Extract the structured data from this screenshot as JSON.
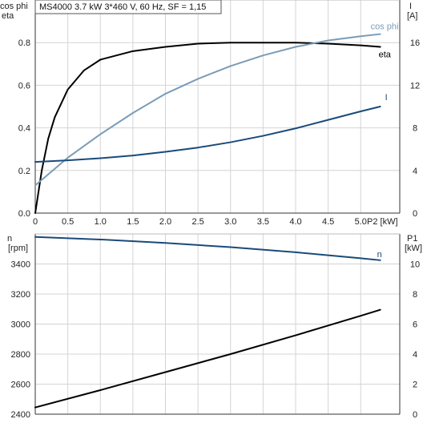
{
  "header": {
    "text": "MS4000   3.7 kW   3*460 V, 60 Hz, SF = 1,15"
  },
  "chart_data": [
    {
      "type": "line",
      "left_axis_title": [
        "cos phi",
        "eta"
      ],
      "right_axis_title": [
        "I",
        "[A]"
      ],
      "xlabel": "P2 [kW]",
      "xlim": [
        0,
        5.6
      ],
      "ylim_left": [
        0,
        1.0
      ],
      "ylim_right": [
        0,
        20
      ],
      "xticks": [
        0,
        0.5,
        1.0,
        1.5,
        2.0,
        2.5,
        3.0,
        3.5,
        4.0,
        4.5,
        5.0
      ],
      "xtick_labels": [
        "0",
        "0.5",
        "1.0",
        "1.5",
        "2.0",
        "2.5",
        "3.0",
        "3.5",
        "4.0",
        "4.5",
        "5.0"
      ],
      "yticks_left": [
        0,
        0.2,
        0.4,
        0.6,
        0.8
      ],
      "ytick_labels_left": [
        "0.0",
        "0.2",
        "0.4",
        "0.6",
        "0.8"
      ],
      "yticks_right": [
        0,
        4,
        8,
        12,
        16
      ],
      "ytick_labels_right": [
        "0",
        "4",
        "8",
        "12",
        "16"
      ],
      "grid": true,
      "series": [
        {
          "name": "eta",
          "axis": "left",
          "color": "#000000",
          "x": [
            0,
            0.05,
            0.1,
            0.2,
            0.3,
            0.5,
            0.75,
            1.0,
            1.5,
            2.0,
            2.5,
            3.0,
            3.5,
            4.0,
            4.5,
            5.0,
            5.3
          ],
          "y": [
            0.0,
            0.1,
            0.2,
            0.35,
            0.45,
            0.58,
            0.67,
            0.72,
            0.76,
            0.78,
            0.795,
            0.8,
            0.8,
            0.8,
            0.795,
            0.787,
            0.78
          ]
        },
        {
          "name": "cos phi",
          "axis": "left",
          "color": "#7a9cb8",
          "x": [
            0,
            0.5,
            1.0,
            1.5,
            2.0,
            2.5,
            3.0,
            3.5,
            4.0,
            4.5,
            5.0,
            5.3
          ],
          "y": [
            0.13,
            0.26,
            0.37,
            0.47,
            0.56,
            0.63,
            0.69,
            0.74,
            0.78,
            0.81,
            0.83,
            0.84
          ]
        },
        {
          "name": "I",
          "axis": "right",
          "color": "#1a4a7a",
          "x": [
            0,
            0.5,
            1.0,
            1.5,
            2.0,
            2.5,
            3.0,
            3.5,
            4.0,
            4.5,
            5.0,
            5.3
          ],
          "y": [
            4.8,
            4.95,
            5.15,
            5.4,
            5.75,
            6.15,
            6.65,
            7.25,
            7.95,
            8.75,
            9.55,
            10.0
          ]
        }
      ]
    },
    {
      "type": "line",
      "left_axis_title": [
        "n",
        "[rpm]"
      ],
      "right_axis_title": [
        "P1",
        "[kW]"
      ],
      "xlim": [
        0,
        5.6
      ],
      "ylim_left": [
        2400,
        3600
      ],
      "ylim_right": [
        0,
        12
      ],
      "yticks_left": [
        2400,
        2600,
        2800,
        3000,
        3200,
        3400
      ],
      "ytick_labels_left": [
        "2400",
        "2600",
        "2800",
        "3000",
        "3200",
        "3400"
      ],
      "yticks_right": [
        0,
        2,
        4,
        6,
        8,
        10
      ],
      "ytick_labels_right": [
        "0",
        "2",
        "4",
        "6",
        "8",
        "10"
      ],
      "grid": true,
      "series": [
        {
          "name": "n",
          "axis": "left",
          "color": "#1a4a7a",
          "x": [
            0,
            1.0,
            2.0,
            3.0,
            4.0,
            5.0,
            5.3
          ],
          "y": [
            3580,
            3563,
            3540,
            3512,
            3478,
            3438,
            3425
          ]
        },
        {
          "name": "",
          "axis": "right",
          "color": "#000000",
          "x": [
            0,
            1.0,
            2.0,
            3.0,
            4.0,
            5.0,
            5.3
          ],
          "y": [
            0.45,
            1.6,
            2.8,
            4.0,
            5.25,
            6.55,
            6.95
          ]
        }
      ]
    }
  ]
}
